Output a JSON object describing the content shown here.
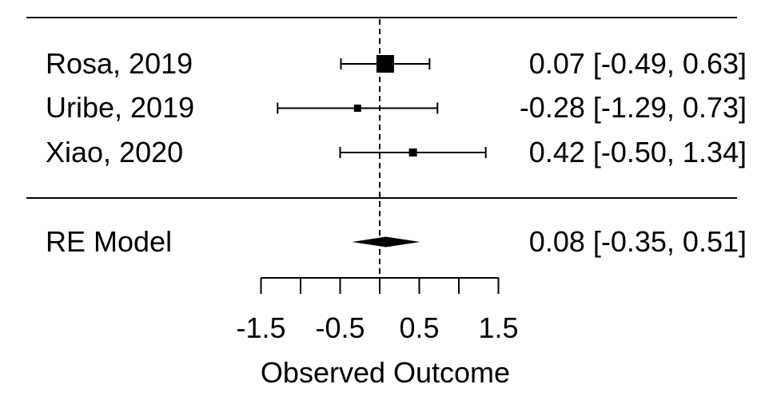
{
  "chart_data": {
    "type": "forest",
    "studies": [
      {
        "label": "Rosa, 2019",
        "estimate": 0.07,
        "ci_lower": -0.49,
        "ci_upper": 0.63,
        "estimate_text": "0.07 [-0.49, 0.63]",
        "marker_size": 22
      },
      {
        "label": "Uribe, 2019",
        "estimate": -0.28,
        "ci_lower": -1.29,
        "ci_upper": 0.73,
        "estimate_text": "-0.28 [-1.29, 0.73]",
        "marker_size": 9
      },
      {
        "label": "Xiao, 2020",
        "estimate": 0.42,
        "ci_lower": -0.5,
        "ci_upper": 1.34,
        "estimate_text": "0.42 [-0.50, 1.34]",
        "marker_size": 10
      }
    ],
    "summary": {
      "label": "RE Model",
      "estimate": 0.08,
      "ci_lower": -0.35,
      "ci_upper": 0.51,
      "estimate_text": "0.08 [-0.35, 0.51]"
    },
    "xlabel": "Observed Outcome",
    "x_axis": {
      "min": -1.5,
      "max": 1.5,
      "major_ticks": [
        -1.5,
        -0.5,
        0.5,
        1.5
      ],
      "minor_ticks": [
        -1,
        0,
        1
      ],
      "tick_labels": [
        "-1.5",
        "-0.5",
        "0.5",
        "1.5"
      ]
    },
    "reference_line": 0,
    "colors": {
      "foreground": "#000000",
      "background": "#ffffff"
    }
  }
}
